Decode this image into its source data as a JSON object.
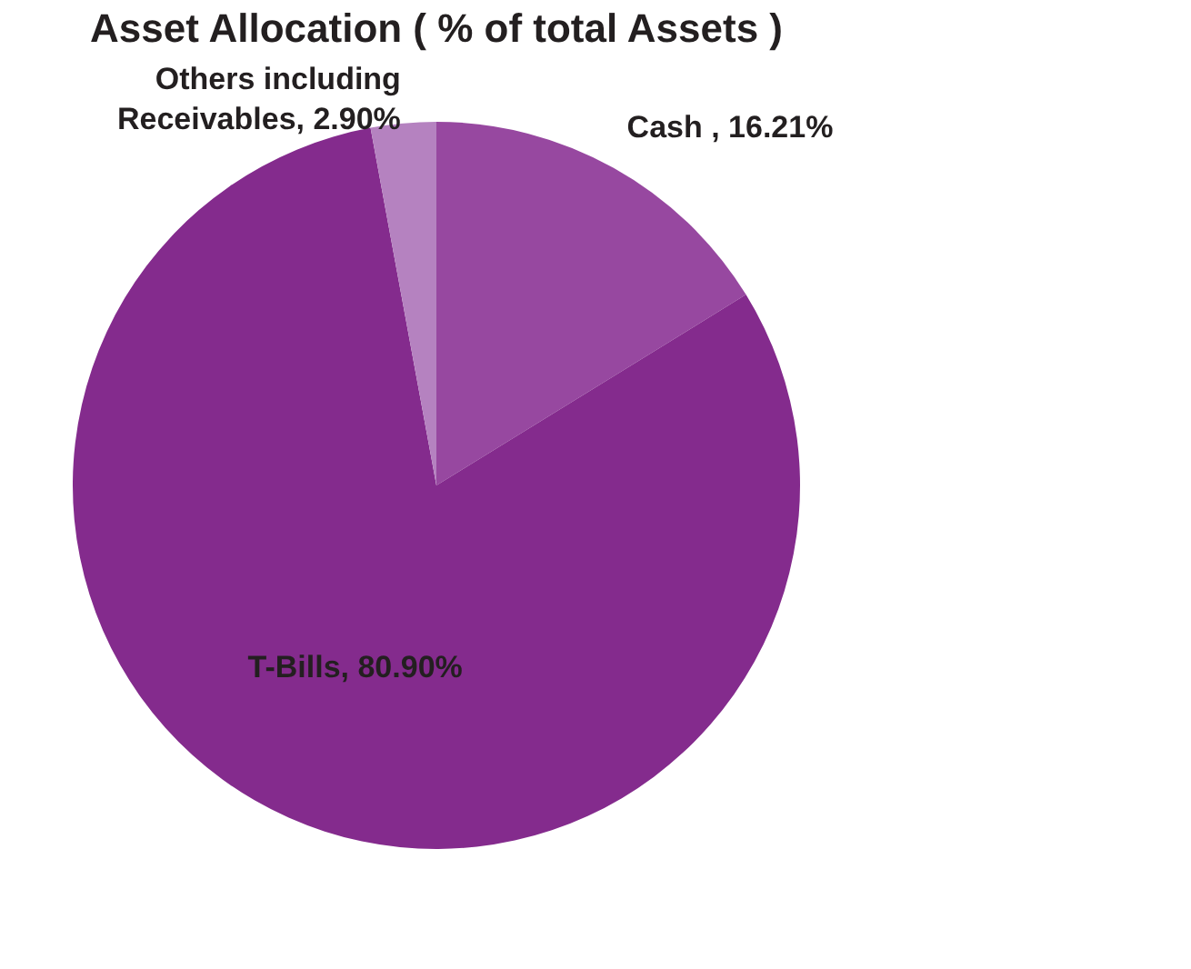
{
  "chart_data": {
    "type": "pie",
    "title": "Asset Allocation ( % of total Assets )",
    "categories": [
      "Cash ",
      "T-Bills",
      "Others including\nReceivables"
    ],
    "values": [
      16.21,
      80.9,
      2.9
    ],
    "value_labels": [
      "16.21%",
      "80.90%",
      "2.90%"
    ],
    "colors": [
      "#9748a0",
      "#842b8d",
      "#b582c0"
    ],
    "legend": false
  }
}
